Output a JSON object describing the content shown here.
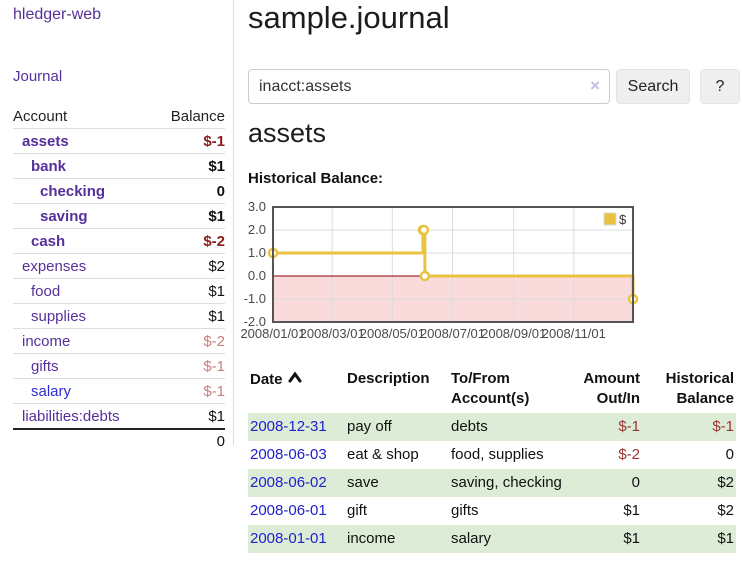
{
  "app": {
    "brand": "hledger-web",
    "nav": [
      {
        "label": "Journal"
      }
    ]
  },
  "sidebar": {
    "account_header": "Account",
    "balance_header": "Balance",
    "accounts": [
      {
        "name": "assets",
        "level": 1,
        "in_query": true,
        "balance": "$-1"
      },
      {
        "name": "bank",
        "level": 2,
        "in_query": true,
        "balance": "$1"
      },
      {
        "name": "checking",
        "level": 3,
        "in_query": true,
        "balance": "0"
      },
      {
        "name": "saving",
        "level": 3,
        "in_query": true,
        "balance": "$1"
      },
      {
        "name": "cash",
        "level": 2,
        "in_query": true,
        "balance": "$-2"
      },
      {
        "name": "expenses",
        "level": 1,
        "in_query": false,
        "balance": "$2"
      },
      {
        "name": "food",
        "level": 2,
        "in_query": false,
        "balance": "$1"
      },
      {
        "name": "supplies",
        "level": 2,
        "in_query": false,
        "balance": "$1"
      },
      {
        "name": "income",
        "level": 1,
        "in_query": false,
        "balance": "$-2"
      },
      {
        "name": "gifts",
        "level": 2,
        "in_query": false,
        "balance": "$-1"
      },
      {
        "name": "salary",
        "level": 2,
        "in_query": false,
        "balance": "$-1"
      },
      {
        "name": "liabilities:debts",
        "level": 1,
        "in_query": false,
        "balance": "$1"
      }
    ],
    "total": "0"
  },
  "main": {
    "title": "sample.journal",
    "search": {
      "value": "inacct:assets",
      "clear_icon": "×",
      "search_button": "Search",
      "help_button": "?"
    },
    "account_heading": "assets",
    "chart_label": "Historical Balance:"
  },
  "chart_data": {
    "type": "line",
    "step": true,
    "title": "Historical Balance",
    "xlim": [
      "2008-01-01",
      "2008-12-31"
    ],
    "ylim": [
      -2,
      3
    ],
    "x_ticks": [
      "2008/01/01",
      "2008/03/01",
      "2008/05/01",
      "2008/07/01",
      "2008/09/01",
      "2008/11/01"
    ],
    "y_ticks": [
      3.0,
      2.0,
      1.0,
      0.0,
      -1.0,
      -2.0
    ],
    "grid": true,
    "grid_color": "#dcdcdc",
    "negative_region_color": "#fadbdb",
    "zero_line_color": "#8b0000",
    "legend_position": "top-right",
    "series": [
      {
        "name": "$",
        "color": "#e9c340",
        "points": [
          [
            "2008-01-01",
            1
          ],
          [
            "2008-06-01",
            2
          ],
          [
            "2008-06-02",
            2
          ],
          [
            "2008-06-03",
            0
          ],
          [
            "2008-12-31",
            -1
          ]
        ]
      }
    ]
  },
  "register": {
    "columns": [
      "Date",
      "Description",
      "To/From Account(s)",
      "Amount Out/In",
      "Historical Balance"
    ],
    "sort": {
      "column": "Date",
      "direction": "ascending"
    },
    "rows": [
      {
        "date": "2008-12-31",
        "description": "pay off",
        "accounts": "debts",
        "amount": "$-1",
        "balance": "$-1"
      },
      {
        "date": "2008-06-03",
        "description": "eat & shop",
        "accounts": "food, supplies",
        "amount": "$-2",
        "balance": "0"
      },
      {
        "date": "2008-06-02",
        "description": "save",
        "accounts": "saving, checking",
        "amount": "0",
        "balance": "$2"
      },
      {
        "date": "2008-06-01",
        "description": "gift",
        "accounts": "gifts",
        "amount": "$1",
        "balance": "$2"
      },
      {
        "date": "2008-01-01",
        "description": "income",
        "accounts": "salary",
        "amount": "$1",
        "balance": "$1"
      }
    ]
  },
  "colors": {
    "link_purple": "#55309b",
    "link_blue": "#2121cc",
    "negative_strong": "#8b1d1d",
    "negative_soft": "#c5817f",
    "table_negative": "#9c3434",
    "row_stripe_green": "#ddecd7",
    "chart_series_gold": "#e9c340",
    "chart_negative_pink": "#fadbdb",
    "chart_zero_line": "#8b0000"
  }
}
